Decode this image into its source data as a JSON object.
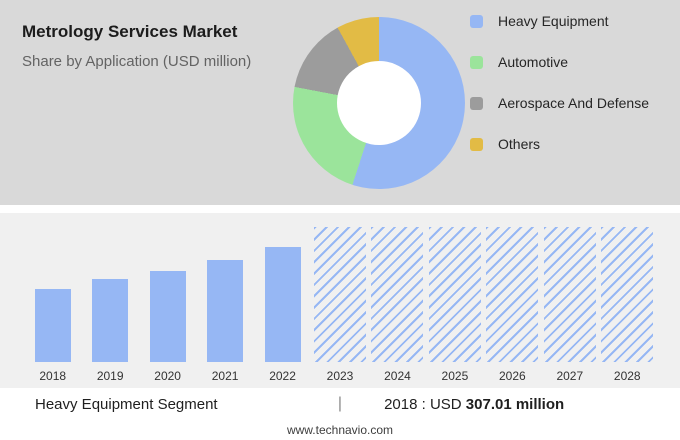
{
  "header": {
    "title": "Metrology Services Market",
    "subtitle": "Share by Application (USD million)"
  },
  "legend": {
    "items": [
      {
        "label": "Heavy Equipment",
        "color": "#96b7f4"
      },
      {
        "label": "Automotive",
        "color": "#9be49b"
      },
      {
        "label": "Aerospace And Defense",
        "color": "#9c9c9c"
      },
      {
        "label": "Others",
        "color": "#e2bb45"
      }
    ]
  },
  "chart_data": [
    {
      "type": "pie",
      "title": "Metrology Services Market",
      "subtitle": "Share by Application (USD million)",
      "labels": [
        "Heavy Equipment",
        "Automotive",
        "Aerospace And Defense",
        "Others"
      ],
      "values_pct": [
        55,
        23,
        14,
        8
      ],
      "colors": [
        "#96b7f4",
        "#9be49b",
        "#9c9c9c",
        "#e2bb45"
      ],
      "donut": true,
      "legend_position": "right"
    },
    {
      "type": "bar",
      "categories": [
        "2018",
        "2019",
        "2020",
        "2021",
        "2022",
        "2023",
        "2024",
        "2025",
        "2026",
        "2027",
        "2028"
      ],
      "values": [
        307.01,
        349,
        383,
        429,
        484,
        null,
        null,
        null,
        null,
        null,
        null
      ],
      "forecast_categories": [
        "2023",
        "2024",
        "2025",
        "2026",
        "2027",
        "2028"
      ],
      "ylim": [
        0,
        570
      ],
      "bar_color": "#96b7f4",
      "grid": false,
      "xlabel": "",
      "ylabel": ""
    }
  ],
  "footer": {
    "segment_label": "Heavy Equipment Segment",
    "separator": "|",
    "value_prefix": "2018 : USD",
    "value_bold": "307.01 million",
    "website": "www.technavio.com"
  }
}
